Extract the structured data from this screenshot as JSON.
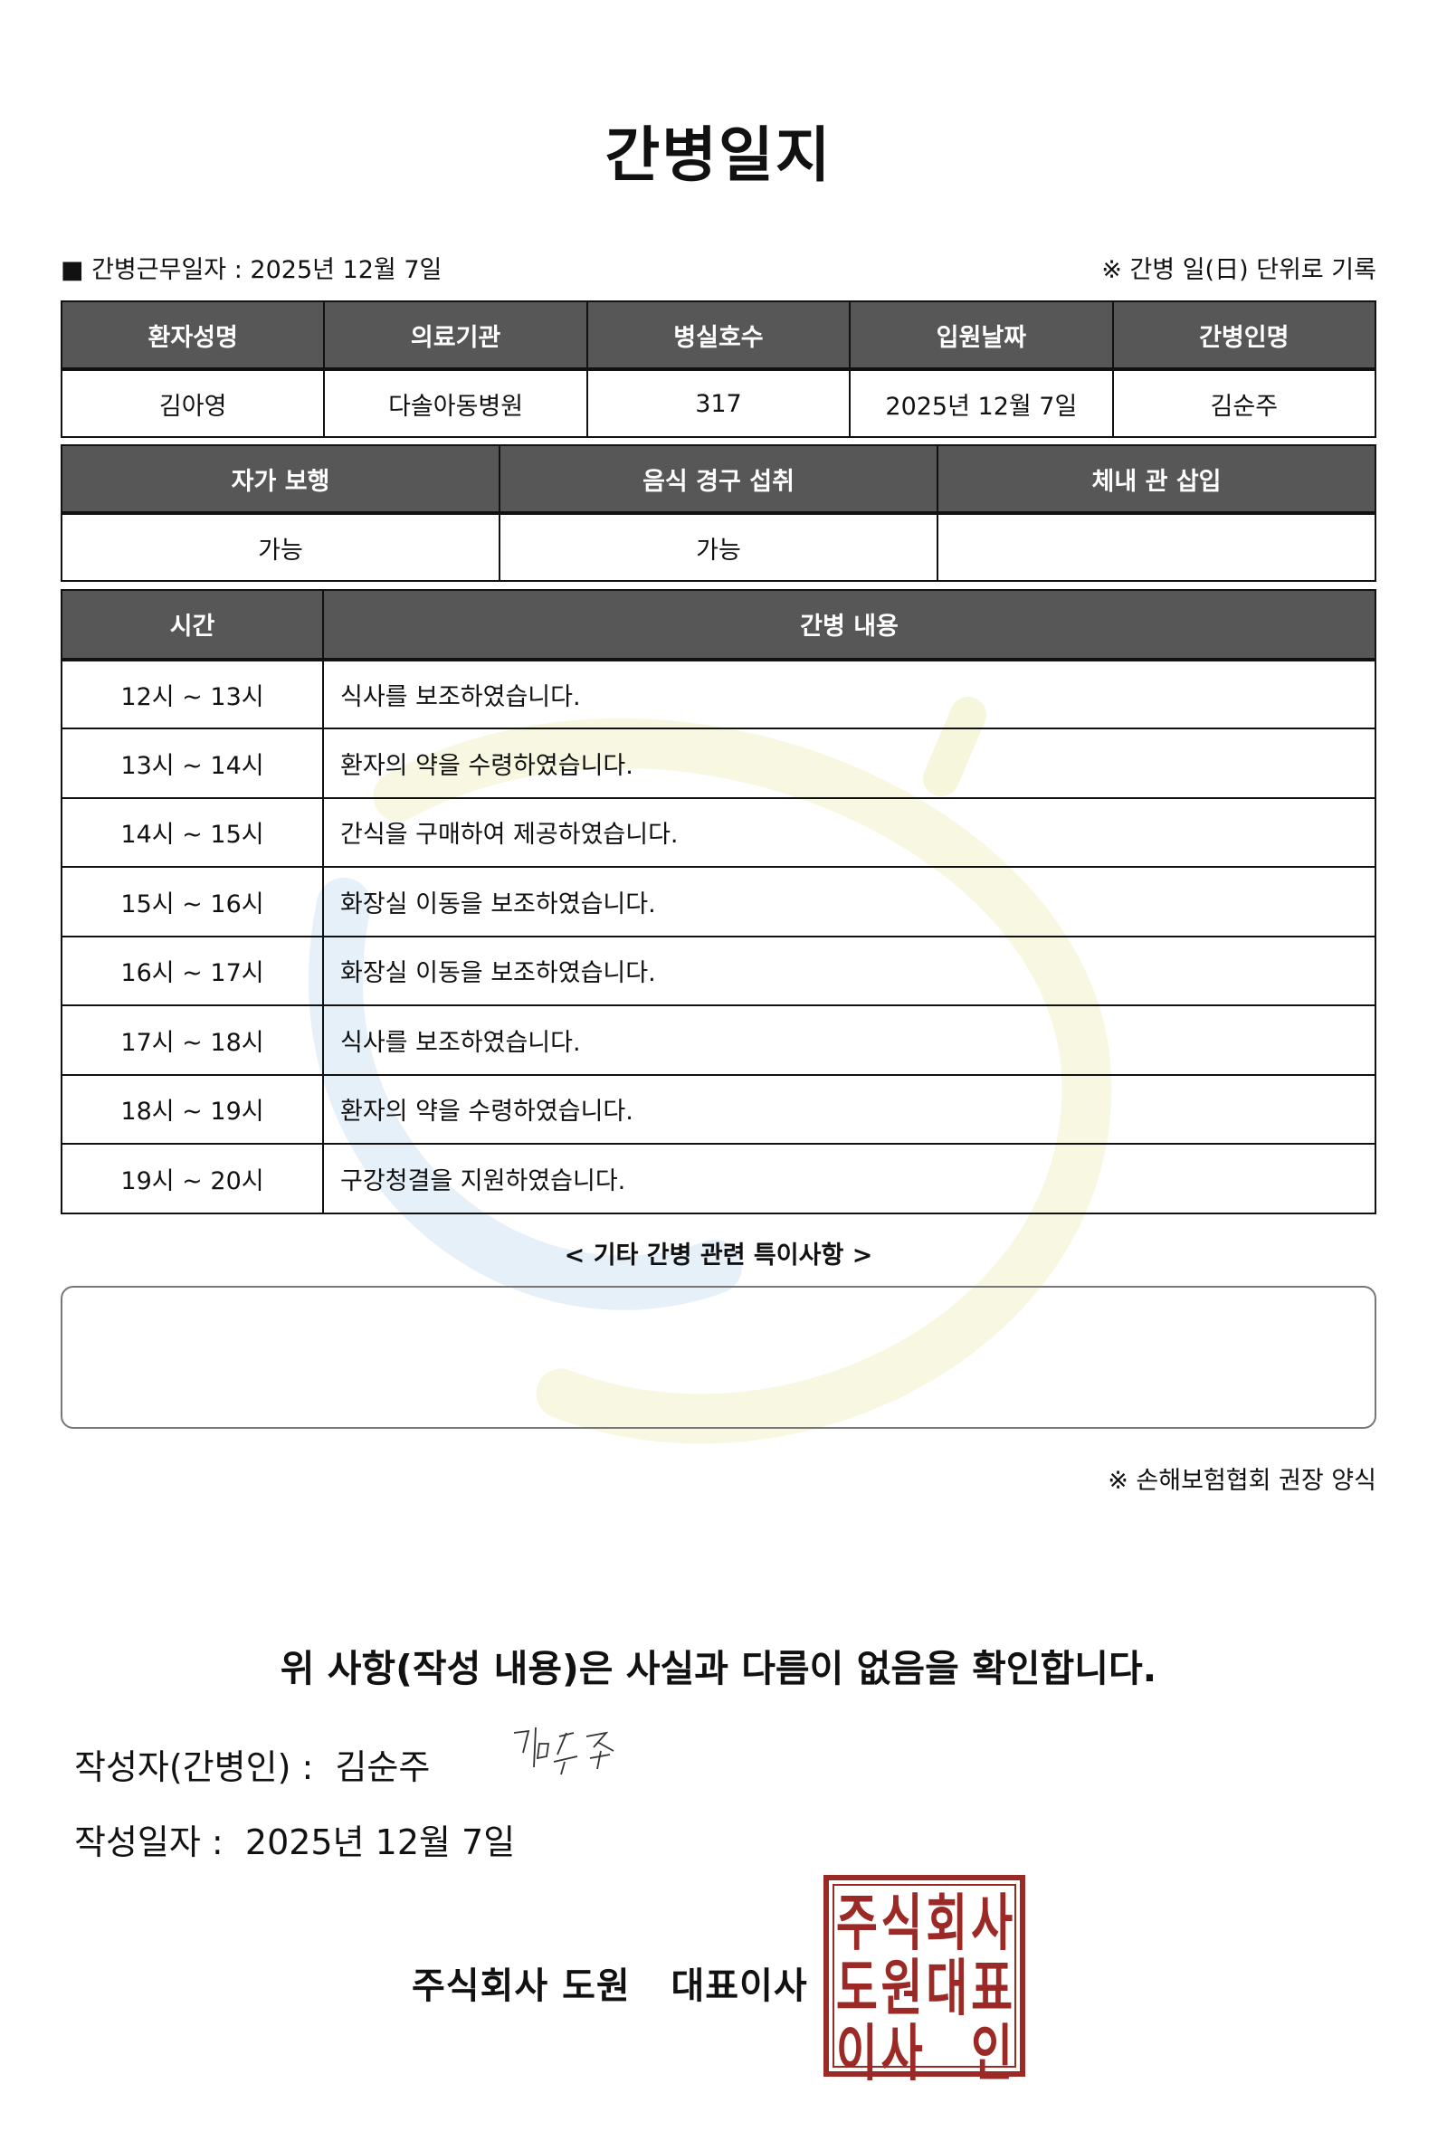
{
  "title": "간병일지",
  "work_date_label": "■ 간병근무일자 :",
  "work_date": "2025년 12월 7일",
  "record_note": "※ 간병 일(日) 단위로 기록",
  "info": {
    "headers": [
      "환자성명",
      "의료기관",
      "병실호수",
      "입원날짜",
      "간병인명"
    ],
    "values": [
      "김아영",
      "다솔아동병원",
      "317",
      "2025년 12월 7일",
      "김순주"
    ]
  },
  "status": {
    "headers": [
      "자가 보행",
      "음식 경구 섭취",
      "체내 관 삽입"
    ],
    "values": [
      "가능",
      "가능",
      ""
    ]
  },
  "log": {
    "headers": [
      "시간",
      "간병 내용"
    ],
    "rows": [
      {
        "time": "12시 ~ 13시",
        "content": "식사를 보조하였습니다."
      },
      {
        "time": "13시 ~ 14시",
        "content": "환자의 약을 수령하였습니다."
      },
      {
        "time": "14시 ~ 15시",
        "content": "간식을 구매하여 제공하였습니다."
      },
      {
        "time": "15시 ~ 16시",
        "content": "화장실 이동을 보조하였습니다."
      },
      {
        "time": "16시 ~ 17시",
        "content": "화장실 이동을 보조하였습니다."
      },
      {
        "time": "17시 ~ 18시",
        "content": "식사를 보조하였습니다."
      },
      {
        "time": "18시 ~ 19시",
        "content": "환자의 약을 수령하였습니다."
      },
      {
        "time": "19시 ~ 20시",
        "content": "구강청결을 지원하였습니다."
      }
    ]
  },
  "remarks_label": "< 기타 간병 관련 특이사항 >",
  "remarks": "",
  "form_source": "※ 손해보험협회 권장 양식",
  "confirmation": "위 사항(작성 내용)은 사실과 다름이 없음을 확인합니다.",
  "writer_label": "작성자(간병인) :",
  "writer_name": "김순주",
  "signature": "김순주",
  "written_date_label": "작성일자 :",
  "written_date": "2025년 12월 7일",
  "company": "주식회사 도원   대표이사",
  "stamp_text": "주식회사도원대표이사인",
  "colors": {
    "header_bg": "#575757",
    "stamp": "#9b2a26"
  }
}
